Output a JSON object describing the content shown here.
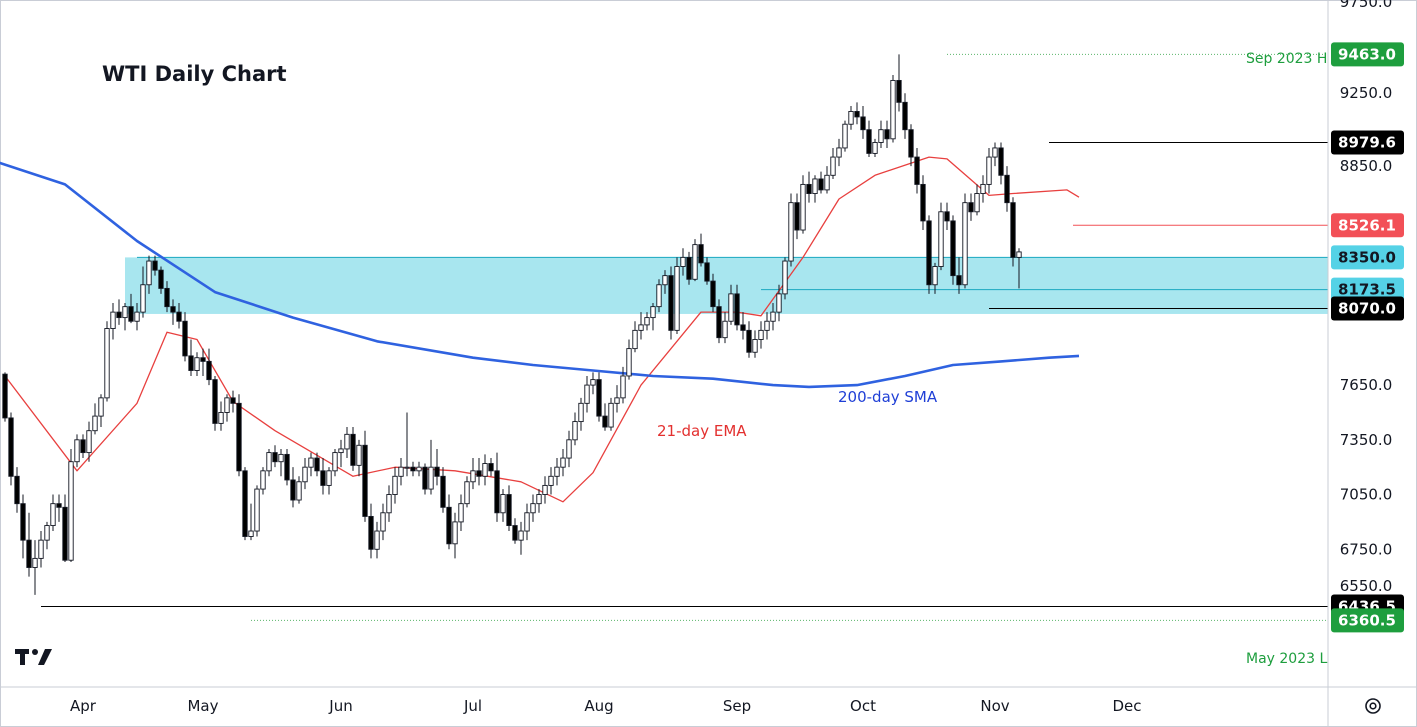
{
  "chart_data": {
    "type": "candlestick",
    "title": "WTI Daily Chart",
    "instrument": "WTI",
    "timeframe": "Daily",
    "ylim": [
      6280,
      9780
    ],
    "y_ticks": [
      6550.0,
      6750.0,
      7050.0,
      7350.0,
      7650.0,
      8850.0,
      9250.0,
      9750.0
    ],
    "x_ticks": [
      "Apr",
      "May",
      "Jun",
      "Jul",
      "Aug",
      "Sep",
      "Oct",
      "Nov",
      "Dec"
    ],
    "x_tick_dates": [
      "2023-04-01",
      "2023-05-01",
      "2023-06-01",
      "2023-07-01",
      "2023-08-01",
      "2023-09-01",
      "2023-10-01",
      "2023-11-01",
      "2023-12-01"
    ],
    "ohlc_start_date": "2023-03-15",
    "candles": [
      [
        7710,
        7720,
        7450,
        7470
      ],
      [
        7470,
        7500,
        7100,
        7150
      ],
      [
        7150,
        7200,
        6950,
        7000
      ],
      [
        7000,
        7050,
        6700,
        6800
      ],
      [
        6800,
        6950,
        6600,
        6650
      ],
      [
        6650,
        6800,
        6500,
        6700
      ],
      [
        6700,
        6850,
        6650,
        6800
      ],
      [
        6800,
        6900,
        6750,
        6880
      ],
      [
        6880,
        7050,
        6850,
        7000
      ],
      [
        7000,
        7050,
        6900,
        6980
      ],
      [
        6980,
        7050,
        6680,
        6690
      ],
      [
        6690,
        7300,
        6680,
        7230
      ],
      [
        7230,
        7380,
        7200,
        7350
      ],
      [
        7350,
        7380,
        7250,
        7280
      ],
      [
        7280,
        7450,
        7230,
        7400
      ],
      [
        7400,
        7550,
        7380,
        7480
      ],
      [
        7480,
        7600,
        7420,
        7580
      ],
      [
        7580,
        8000,
        7560,
        7960
      ],
      [
        7960,
        8100,
        7900,
        8050
      ],
      [
        8050,
        8120,
        7980,
        8020
      ],
      [
        8020,
        8100,
        7950,
        8080
      ],
      [
        8080,
        8150,
        7990,
        8000
      ],
      [
        8000,
        8100,
        7950,
        8050
      ],
      [
        8050,
        8300,
        8020,
        8200
      ],
      [
        8200,
        8360,
        8150,
        8330
      ],
      [
        8330,
        8360,
        8250,
        8280
      ],
      [
        8280,
        8300,
        8150,
        8180
      ],
      [
        8180,
        8220,
        8050,
        8080
      ],
      [
        8080,
        8120,
        7980,
        8050
      ],
      [
        8050,
        8100,
        7960,
        8000
      ],
      [
        8000,
        8050,
        7780,
        7810
      ],
      [
        7810,
        7900,
        7700,
        7730
      ],
      [
        7730,
        7830,
        7700,
        7800
      ],
      [
        7800,
        7850,
        7700,
        7780
      ],
      [
        7780,
        7850,
        7650,
        7680
      ],
      [
        7680,
        7700,
        7400,
        7440
      ],
      [
        7440,
        7560,
        7400,
        7500
      ],
      [
        7500,
        7600,
        7450,
        7580
      ],
      [
        7580,
        7620,
        7500,
        7550
      ],
      [
        7550,
        7600,
        7150,
        7180
      ],
      [
        7180,
        7200,
        6800,
        6820
      ],
      [
        6820,
        7000,
        6800,
        6850
      ],
      [
        6850,
        7100,
        6820,
        7080
      ],
      [
        7080,
        7200,
        7050,
        7180
      ],
      [
        7180,
        7300,
        7150,
        7280
      ],
      [
        7280,
        7320,
        7200,
        7230
      ],
      [
        7230,
        7300,
        7150,
        7270
      ],
      [
        7270,
        7300,
        7100,
        7130
      ],
      [
        7130,
        7200,
        6980,
        7020
      ],
      [
        7020,
        7150,
        7000,
        7120
      ],
      [
        7120,
        7250,
        7080,
        7200
      ],
      [
        7200,
        7280,
        7150,
        7250
      ],
      [
        7250,
        7280,
        7150,
        7180
      ],
      [
        7180,
        7250,
        7050,
        7100
      ],
      [
        7100,
        7200,
        7050,
        7180
      ],
      [
        7180,
        7300,
        7150,
        7280
      ],
      [
        7280,
        7350,
        7200,
        7300
      ],
      [
        7300,
        7420,
        7250,
        7380
      ],
      [
        7380,
        7420,
        7180,
        7210
      ],
      [
        7210,
        7350,
        7150,
        7320
      ],
      [
        7320,
        7400,
        6900,
        6930
      ],
      [
        6930,
        7000,
        6700,
        6750
      ],
      [
        6750,
        6900,
        6700,
        6850
      ],
      [
        6850,
        7000,
        6800,
        6950
      ],
      [
        6950,
        7100,
        6900,
        7050
      ],
      [
        7050,
        7200,
        7000,
        7150
      ],
      [
        7150,
        7250,
        7100,
        7200
      ],
      [
        7200,
        7500,
        7150,
        7200
      ],
      [
        7200,
        7230,
        7150,
        7180
      ],
      [
        7180,
        7230,
        7150,
        7200
      ],
      [
        7200,
        7220,
        7050,
        7080
      ],
      [
        7080,
        7350,
        7050,
        7200
      ],
      [
        7200,
        7300,
        7100,
        7150
      ],
      [
        7150,
        7200,
        6950,
        6980
      ],
      [
        6980,
        7050,
        6750,
        6780
      ],
      [
        6780,
        6950,
        6700,
        6900
      ],
      [
        6900,
        7050,
        6850,
        7000
      ],
      [
        7000,
        7150,
        6980,
        7120
      ],
      [
        7120,
        7250,
        7080,
        7180
      ],
      [
        7180,
        7250,
        7100,
        7150
      ],
      [
        7150,
        7270,
        7100,
        7220
      ],
      [
        7220,
        7250,
        7150,
        7180
      ],
      [
        7180,
        7280,
        6900,
        6950
      ],
      [
        6950,
        7080,
        6900,
        7050
      ],
      [
        7050,
        7100,
        6850,
        6880
      ],
      [
        6880,
        6920,
        6780,
        6800
      ],
      [
        6800,
        6900,
        6720,
        6850
      ],
      [
        6850,
        7000,
        6800,
        6950
      ],
      [
        6950,
        7050,
        6900,
        7000
      ],
      [
        7000,
        7080,
        6950,
        7050
      ],
      [
        7050,
        7150,
        7000,
        7100
      ],
      [
        7100,
        7200,
        7050,
        7150
      ],
      [
        7150,
        7250,
        7100,
        7200
      ],
      [
        7200,
        7300,
        7150,
        7250
      ],
      [
        7250,
        7400,
        7200,
        7350
      ],
      [
        7350,
        7500,
        7320,
        7450
      ],
      [
        7450,
        7580,
        7400,
        7550
      ],
      [
        7550,
        7700,
        7500,
        7650
      ],
      [
        7650,
        7720,
        7600,
        7680
      ],
      [
        7680,
        7720,
        7450,
        7480
      ],
      [
        7480,
        7550,
        7400,
        7420
      ],
      [
        7420,
        7580,
        7400,
        7550
      ],
      [
        7550,
        7650,
        7500,
        7580
      ],
      [
        7580,
        7750,
        7550,
        7700
      ],
      [
        7700,
        7900,
        7680,
        7850
      ],
      [
        7850,
        8000,
        7830,
        7950
      ],
      [
        7950,
        8050,
        7900,
        7980
      ],
      [
        7980,
        8050,
        7950,
        8020
      ],
      [
        8020,
        8100,
        7950,
        8080
      ],
      [
        8080,
        8230,
        8050,
        8200
      ],
      [
        8200,
        8280,
        8150,
        8250
      ],
      [
        8250,
        8300,
        7900,
        7950
      ],
      [
        7950,
        8350,
        7930,
        8300
      ],
      [
        8300,
        8400,
        8250,
        8350
      ],
      [
        8350,
        8380,
        8200,
        8230
      ],
      [
        8230,
        8450,
        8220,
        8420
      ],
      [
        8420,
        8480,
        8300,
        8320
      ],
      [
        8320,
        8350,
        8200,
        8220
      ],
      [
        8220,
        8260,
        8050,
        8080
      ],
      [
        8080,
        8120,
        7880,
        7910
      ],
      [
        7910,
        8050,
        7880,
        8000
      ],
      [
        8000,
        8200,
        7980,
        8150
      ],
      [
        8150,
        8200,
        7950,
        7980
      ],
      [
        7980,
        8050,
        7900,
        7950
      ],
      [
        7950,
        8000,
        7800,
        7830
      ],
      [
        7830,
        7950,
        7800,
        7900
      ],
      [
        7900,
        8000,
        7850,
        7950
      ],
      [
        7950,
        8050,
        7900,
        8000
      ],
      [
        8000,
        8100,
        7950,
        8050
      ],
      [
        8050,
        8200,
        8000,
        8150
      ],
      [
        8150,
        8350,
        8120,
        8330
      ],
      [
        8330,
        8700,
        8300,
        8650
      ],
      [
        8650,
        8700,
        8450,
        8500
      ],
      [
        8500,
        8800,
        8480,
        8750
      ],
      [
        8750,
        8820,
        8650,
        8700
      ],
      [
        8700,
        8800,
        8650,
        8780
      ],
      [
        8780,
        8820,
        8700,
        8720
      ],
      [
        8720,
        8850,
        8700,
        8800
      ],
      [
        8800,
        8950,
        8780,
        8900
      ],
      [
        8900,
        9000,
        8850,
        8950
      ],
      [
        8950,
        9100,
        8930,
        9080
      ],
      [
        9080,
        9180,
        9050,
        9150
      ],
      [
        9150,
        9200,
        9080,
        9120
      ],
      [
        9120,
        9180,
        9000,
        9050
      ],
      [
        9050,
        9100,
        8900,
        8920
      ],
      [
        8920,
        9000,
        8900,
        8980
      ],
      [
        8980,
        9100,
        8950,
        9050
      ],
      [
        9050,
        9100,
        8950,
        9000
      ],
      [
        9000,
        9350,
        8980,
        9320
      ],
      [
        9320,
        9463,
        9150,
        9200
      ],
      [
        9200,
        9250,
        9000,
        9050
      ],
      [
        9050,
        9080,
        8850,
        8900
      ],
      [
        8900,
        8950,
        8700,
        8750
      ],
      [
        8750,
        8800,
        8500,
        8550
      ],
      [
        8550,
        8580,
        8150,
        8200
      ],
      [
        8200,
        8320,
        8150,
        8300
      ],
      [
        8300,
        8650,
        8280,
        8600
      ],
      [
        8600,
        8650,
        8500,
        8550
      ],
      [
        8550,
        8580,
        8200,
        8250
      ],
      [
        8250,
        8350,
        8150,
        8200
      ],
      [
        8200,
        8700,
        8180,
        8650
      ],
      [
        8650,
        8700,
        8550,
        8600
      ],
      [
        8600,
        8750,
        8580,
        8700
      ],
      [
        8700,
        8800,
        8650,
        8750
      ],
      [
        8750,
        8950,
        8700,
        8900
      ],
      [
        8900,
        8980,
        8850,
        8950
      ],
      [
        8950,
        8980,
        8750,
        8800
      ],
      [
        8800,
        8850,
        8600,
        8650
      ],
      [
        8650,
        8680,
        8300,
        8350
      ],
      [
        8350,
        8400,
        8180,
        8380
      ]
    ],
    "series": [
      {
        "name": "21-day EMA",
        "color": "#e8403f",
        "values": [
          [
            0,
            7700
          ],
          [
            12,
            7180
          ],
          [
            22,
            7550
          ],
          [
            27,
            7940
          ],
          [
            32,
            7900
          ],
          [
            38,
            7560
          ],
          [
            45,
            7400
          ],
          [
            58,
            7150
          ],
          [
            65,
            7200
          ],
          [
            75,
            7180
          ],
          [
            86,
            7120
          ],
          [
            93,
            7010
          ],
          [
            98,
            7170
          ],
          [
            106,
            7650
          ],
          [
            116,
            8050
          ],
          [
            122,
            8050
          ],
          [
            126,
            8030
          ],
          [
            133,
            8350
          ],
          [
            139,
            8670
          ],
          [
            145,
            8800
          ],
          [
            154,
            8900
          ],
          [
            157,
            8890
          ],
          [
            164,
            8690
          ],
          [
            168,
            8700
          ],
          [
            177,
            8720
          ],
          [
            179,
            8680
          ]
        ]
      },
      {
        "name": "200-day SMA",
        "color": "#2f62e0",
        "values": [
          [
            -2,
            8880
          ],
          [
            10,
            8750
          ],
          [
            22,
            8440
          ],
          [
            35,
            8160
          ],
          [
            48,
            8020
          ],
          [
            62,
            7890
          ],
          [
            78,
            7800
          ],
          [
            88,
            7760
          ],
          [
            98,
            7730
          ],
          [
            108,
            7700
          ],
          [
            118,
            7685
          ],
          [
            128,
            7650
          ],
          [
            134,
            7640
          ],
          [
            142,
            7650
          ],
          [
            150,
            7700
          ],
          [
            158,
            7760
          ],
          [
            166,
            7780
          ],
          [
            174,
            7800
          ],
          [
            179,
            7810
          ]
        ]
      }
    ],
    "annotations": {
      "sma_label": "200-day SMA",
      "ema_label": "21-day EMA",
      "high_label": "Sep 2023 H",
      "low_label": "May 2023 L",
      "zone_top": 8350.0,
      "zone_bottom": 8040
    },
    "price_tags": [
      {
        "text": "9463.0",
        "value": 9463.0,
        "bg": "#1e9e3e",
        "fg": "#ffffff",
        "start": 157,
        "line": "dotted",
        "color": "#5bb56b"
      },
      {
        "text": "8979.6",
        "value": 8979.6,
        "bg": "#000000",
        "fg": "#ffffff",
        "start": 174,
        "line": "solid",
        "color": "#000000"
      },
      {
        "text": "8526.1",
        "value": 8526.1,
        "bg": "#f25057",
        "fg": "#ffffff",
        "start": 178,
        "line": "solid",
        "color": "#f25057"
      },
      {
        "text": "8350.0",
        "value": 8350.0,
        "bg": "#55d2e6",
        "fg": "#131722",
        "start": 22,
        "line": "solid",
        "color": "#1aa9c1"
      },
      {
        "text": "8173.5",
        "value": 8173.5,
        "bg": "#55d2e6",
        "fg": "#131722",
        "start": 126,
        "line": "solid",
        "color": "#1aa9c1"
      },
      {
        "text": "8070.0",
        "value": 8070.0,
        "bg": "#000000",
        "fg": "#ffffff",
        "start": 164,
        "line": "solid",
        "color": "#000000"
      },
      {
        "text": "6436.5",
        "value": 6436.5,
        "bg": "#000000",
        "fg": "#ffffff",
        "start": 6,
        "line": "solid",
        "color": "#000000"
      },
      {
        "text": "6360.5",
        "value": 6360.5,
        "bg": "#1e9e3e",
        "fg": "#ffffff",
        "start": 41,
        "line": "dotted",
        "color": "#5bb56b"
      }
    ],
    "colors": {
      "up": "#ffffff",
      "down": "#000000",
      "wick": "#131722",
      "zone": "#a8e6ef",
      "zone_line": "#1aa9c1",
      "grid": "#e6e9ef"
    }
  },
  "logo": {
    "name": "tradingview-logo",
    "text": "TV"
  },
  "settings_icon": "gear-icon"
}
